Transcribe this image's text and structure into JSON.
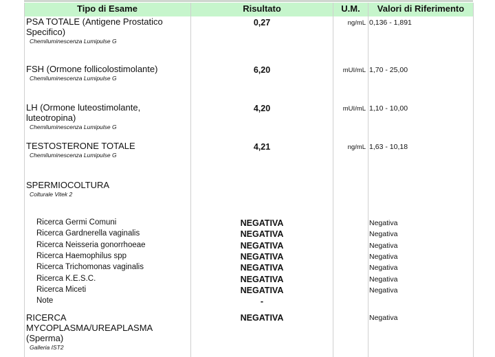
{
  "headers": {
    "exam": "Tipo di Esame",
    "result": "Risultato",
    "unit": "U.M.",
    "reference": "Valori di Riferimento"
  },
  "tests": [
    {
      "name": "PSA TOTALE (Antigene Prostatico Specifico)",
      "method": "Chemiluminescenza Lumipulse G",
      "result": "0,27",
      "unit": "ng/mL",
      "reference": "0,136 - 1,891"
    },
    {
      "name": "FSH (Ormone follicolostimolante)",
      "method": "Chemiluminescenza Lumipulse G",
      "result": "6,20",
      "unit": "mUI/mL",
      "reference": "1,70 - 25,00"
    },
    {
      "name": "LH (Ormone luteostimolante, luteotropina)",
      "method": "Chemiluminescenza Lumipulse G",
      "result": "4,20",
      "unit": "mUI/mL",
      "reference": "1,10 - 10,00"
    },
    {
      "name": "TESTOSTERONE TOTALE",
      "method": "Chemiluminescenza Lumipulse G",
      "result": "4,21",
      "unit": "ng/mL",
      "reference": "1,63 - 10,18"
    }
  ],
  "culture": {
    "name": "SPERMIOCOLTURA",
    "method": "Colturale Vitek 2",
    "items": [
      {
        "name": "Ricerca Germi Comuni",
        "result": "NEGATIVA",
        "reference": "Negativa"
      },
      {
        "name": "Ricerca Gardnerella vaginalis",
        "result": "NEGATIVA",
        "reference": "Negativa"
      },
      {
        "name": "Ricerca Neisseria gonorrhoeae",
        "result": "NEGATIVA",
        "reference": "Negativa"
      },
      {
        "name": "Ricerca Haemophilus spp",
        "result": "NEGATIVA",
        "reference": "Negativa"
      },
      {
        "name": "Ricerca Trichomonas vaginalis",
        "result": "NEGATIVA",
        "reference": "Negativa"
      },
      {
        "name": "Ricerca K.E.S.C.",
        "result": "NEGATIVA",
        "reference": "Negativa"
      },
      {
        "name": "Ricerca Miceti",
        "result": "NEGATIVA",
        "reference": "Negativa"
      },
      {
        "name": "Note",
        "result": "-",
        "reference": ""
      }
    ]
  },
  "mycoplasma": {
    "name": "RICERCA MYCOPLASMA/UREAPLASMA (Sperma)",
    "method": "Galleria IST2",
    "result": "NEGATIVA",
    "reference": "Negativa"
  },
  "colors": {
    "header_bg": "#c6f5cc"
  }
}
